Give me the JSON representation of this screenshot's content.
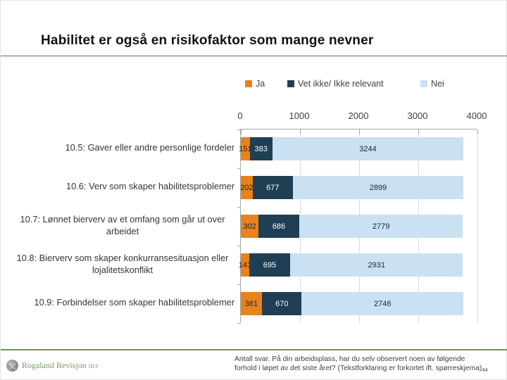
{
  "slide": {
    "title": "Habilitet er også en risikofaktor som mange nevner",
    "footer": {
      "line1": "Antall svar. På din arbeidsplass, har du selv observert noen av følgende",
      "line2": "forhold i løpet av det siste året? (Tekstforklaring er forkortet ift. spørreskjema)"
    },
    "page_number": "44",
    "logo": {
      "name": "Rogaland Revisjon",
      "suffix": "IKS"
    }
  },
  "colors": {
    "series_ja": "#e8821c",
    "series_vet_ikke": "#1f3f54",
    "series_nei": "#c9e1f1",
    "label_dark": "#1a2633",
    "label_light": "#ffffff",
    "title_rule": "#5e7a4a",
    "footer_rule": "#6d9258",
    "axis": "#a6a6a6",
    "grid": "#d9d9d9",
    "logo_green": "#7a9868"
  },
  "chart_data": {
    "type": "bar",
    "orientation": "horizontal",
    "stacked": true,
    "title": "",
    "xlabel": "",
    "ylabel": "",
    "xlim": [
      0,
      4000
    ],
    "x_ticks": [
      0,
      1000,
      2000,
      3000,
      4000
    ],
    "grid": true,
    "legend_position": "top",
    "categories": [
      "10.5: Gaver eller andre personlige fordeler",
      "10.6: Verv som skaper habilitetsproblemer",
      "10.7: Lønnet bierverv av et omfang som går ut over arbeidet",
      "10.8: Bierverv som skaper konkurransesituasjon eller lojalitetskonflikt",
      "10.9: Forbindelser som skaper habilitetsproblemer"
    ],
    "series": [
      {
        "name": "Ja",
        "color": "#e8821c",
        "label_color": "#1a2633",
        "values": [
          151,
          202,
          302,
          141,
          361
        ]
      },
      {
        "name": "Vet ikke/ Ikke relevant",
        "color": "#1f3f54",
        "label_color": "#ffffff",
        "values": [
          383,
          677,
          686,
          695,
          670
        ]
      },
      {
        "name": "Nei",
        "color": "#c9e1f1",
        "label_color": "#1a2633",
        "values": [
          3244,
          2899,
          2779,
          2931,
          2746
        ]
      }
    ]
  }
}
